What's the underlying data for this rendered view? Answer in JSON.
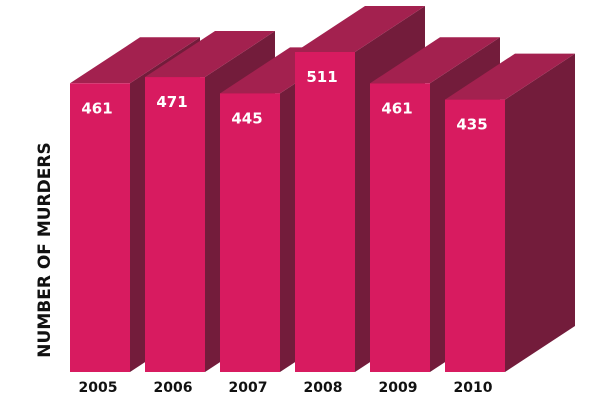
{
  "chart_data": {
    "type": "bar",
    "title": "",
    "xlabel": "",
    "ylabel": "NUMBER OF MURDERS",
    "categories": [
      "2005",
      "2006",
      "2007",
      "2008",
      "2009",
      "2010"
    ],
    "values": [
      461,
      471,
      445,
      511,
      461,
      435
    ],
    "data_labels": [
      "461",
      "471",
      "445",
      "511",
      "461",
      "435"
    ],
    "ylim": [
      0,
      511
    ],
    "grid": false,
    "legend": "none",
    "style": "3d-columns"
  },
  "colors": {
    "front": "#d81b60",
    "top": "#a3214f",
    "side": "#731c3b",
    "label": "#ffffff",
    "axis_text": "#111111"
  }
}
